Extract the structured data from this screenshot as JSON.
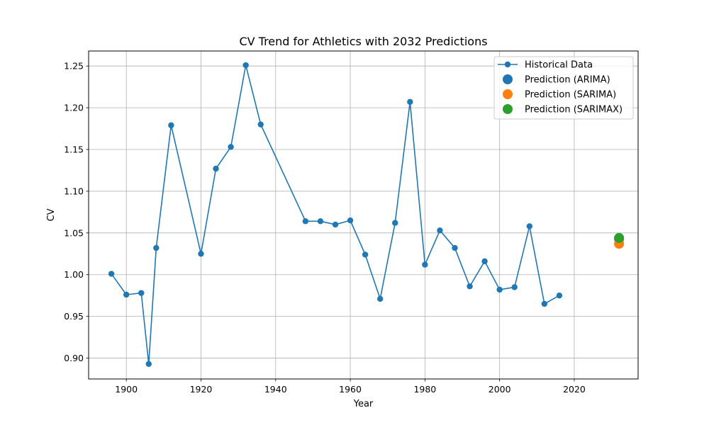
{
  "chart_data": {
    "type": "line",
    "title": "CV Trend for Athletics with 2032 Predictions",
    "xlabel": "Year",
    "ylabel": "CV",
    "xlim": [
      1889.9,
      2037.1
    ],
    "ylim": [
      0.875,
      1.268
    ],
    "xticks": [
      1900,
      1920,
      1940,
      1960,
      1980,
      2000,
      2020
    ],
    "yticks": [
      0.9,
      0.95,
      1.0,
      1.05,
      1.1,
      1.15,
      1.2,
      1.25
    ],
    "grid": true,
    "legend_position": "top-right",
    "series": [
      {
        "name": "Historical Data",
        "kind": "line-marker",
        "color": "#1f77b4",
        "x": [
          1896,
          1900,
          1904,
          1906,
          1908,
          1912,
          1920,
          1924,
          1928,
          1932,
          1936,
          1948,
          1952,
          1956,
          1960,
          1964,
          1968,
          1972,
          1976,
          1980,
          1984,
          1988,
          1992,
          1996,
          2000,
          2004,
          2008,
          2012,
          2016
        ],
        "y": [
          1.001,
          0.976,
          0.978,
          0.893,
          1.032,
          1.179,
          1.025,
          1.127,
          1.153,
          1.251,
          1.18,
          1.064,
          1.064,
          1.06,
          1.065,
          1.024,
          0.971,
          1.062,
          1.207,
          1.012,
          1.053,
          1.032,
          0.986,
          1.016,
          0.982,
          0.985,
          1.058,
          0.965,
          0.975
        ]
      },
      {
        "name": "Prediction (ARIMA)",
        "kind": "point",
        "color": "#1f77b4",
        "x": [
          2032
        ],
        "y": [
          1.043
        ]
      },
      {
        "name": "Prediction (SARIMA)",
        "kind": "point",
        "color": "#ff7f0e",
        "x": [
          2032
        ],
        "y": [
          1.037
        ]
      },
      {
        "name": "Prediction (SARIMAX)",
        "kind": "point",
        "color": "#2ca02c",
        "x": [
          2032
        ],
        "y": [
          1.044
        ]
      }
    ]
  }
}
